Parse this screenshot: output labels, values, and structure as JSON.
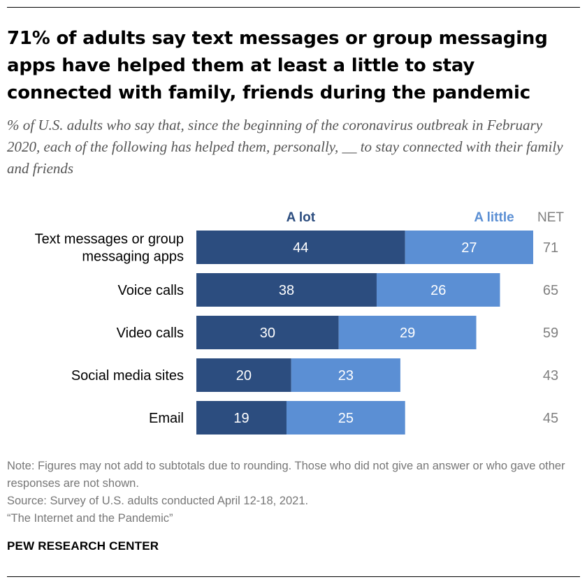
{
  "title": "71% of adults say text messages or group messaging apps have helped them at least a little to stay connected with family, friends during the pandemic",
  "subtitle": "% of U.S. adults who say that, since the beginning of the coronavirus outbreak in February 2020, each of the following has helped them, personally, __ to stay connected with their family and friends",
  "note": "Note: Figures may not add to subtotals due to rounding. Those who did not give an answer or who gave other responses are not shown.",
  "source": "Source: Survey of U.S. adults conducted April 12-18, 2021.",
  "report": "“The Internet and the Pandemic”",
  "brand": "PEW RESEARCH CENTER",
  "colors": {
    "a_lot": "#2c4d7f",
    "a_little": "#5b8fd4",
    "net_text": "#7f7f7f"
  },
  "chart_data": {
    "type": "bar",
    "orientation": "horizontal",
    "stacked": true,
    "categories": [
      [
        "Text messages or group",
        "messaging apps"
      ],
      [
        "Voice calls"
      ],
      [
        "Video calls"
      ],
      [
        "Social media sites"
      ],
      [
        "Email"
      ]
    ],
    "series": [
      {
        "name": "A lot",
        "values": [
          44,
          38,
          30,
          20,
          19
        ]
      },
      {
        "name": "A little",
        "values": [
          27,
          26,
          29,
          23,
          25
        ]
      }
    ],
    "net_label": "NET",
    "net": [
      71,
      65,
      59,
      43,
      45
    ],
    "xlim": [
      0,
      71
    ]
  }
}
